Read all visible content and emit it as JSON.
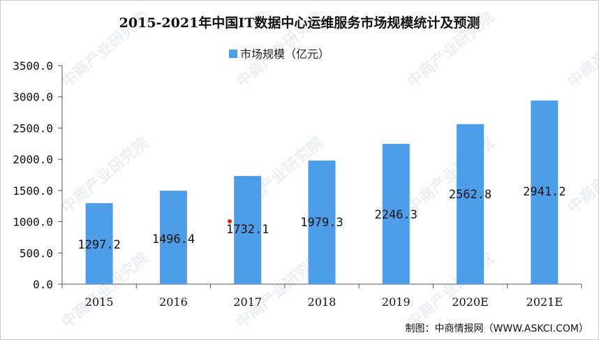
{
  "chart_data": {
    "type": "bar",
    "title": "2015-2021年中国IT数据中心运维服务市场规模统计及预测",
    "categories": [
      "2015",
      "2016",
      "2017",
      "2018",
      "2019",
      "2020E",
      "2021E"
    ],
    "series": [
      {
        "name": "市场规模（亿元）",
        "values": [
          1297.2,
          1496.4,
          1732.1,
          1979.3,
          2246.3,
          2562.8,
          2941.2
        ]
      }
    ],
    "data_labels": [
      "1297.2",
      "1496.4",
      "1732.1",
      "1979.3",
      "2246.3",
      "2562.8",
      "2941.2"
    ],
    "yticks": [
      "3500.0",
      "3000.0",
      "2500.0",
      "2000.0",
      "1500.0",
      "1000.0",
      "500.0",
      "0.0"
    ],
    "ylim": [
      0,
      3500
    ],
    "grid": false,
    "legend_position": "top-center",
    "bar_color": "#4d9de8"
  },
  "source": "制图：中商情报网（WWW.ASKCI.COM）",
  "watermark": "中商产业研究院"
}
